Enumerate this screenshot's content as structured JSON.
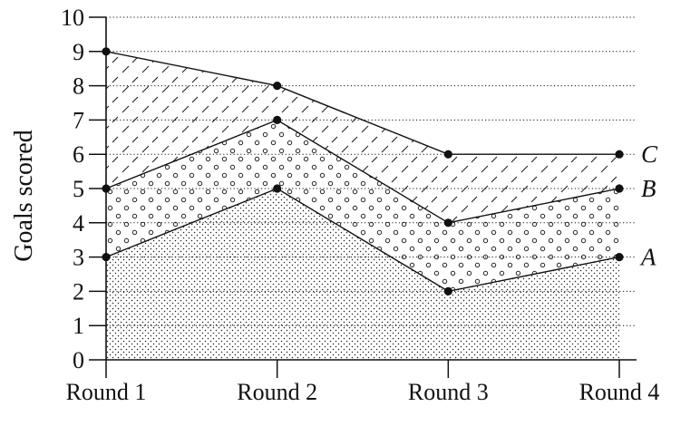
{
  "chart_data": {
    "type": "area",
    "stacked": true,
    "categories": [
      "Round 1",
      "Round 2",
      "Round 3",
      "Round 4"
    ],
    "ylabel": "Goals scored",
    "ylim": [
      0,
      10
    ],
    "yticks": [
      0,
      1,
      2,
      3,
      4,
      5,
      6,
      7,
      8,
      9,
      10
    ],
    "grid": "horizontal-dotted",
    "series": [
      {
        "name": "A",
        "values": [
          3,
          5,
          2,
          3
        ],
        "cumulative": [
          3,
          5,
          2,
          3
        ],
        "pattern": "fine-dots"
      },
      {
        "name": "B",
        "values": [
          2,
          2,
          2,
          2
        ],
        "cumulative": [
          5,
          7,
          4,
          5
        ],
        "pattern": "small-circles"
      },
      {
        "name": "C",
        "values": [
          4,
          1,
          2,
          1
        ],
        "cumulative": [
          9,
          8,
          6,
          6
        ],
        "pattern": "diagonal-dashes"
      }
    ],
    "colors": {
      "ink": "#111111",
      "background": "#ffffff"
    }
  }
}
